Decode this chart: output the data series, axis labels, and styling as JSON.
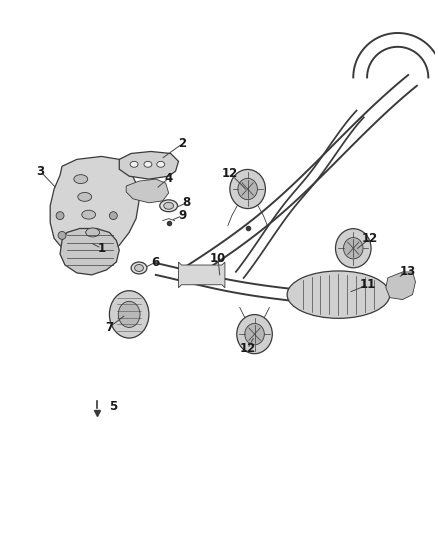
{
  "bg_color": "#ffffff",
  "line_color": "#3a3a3a",
  "label_color": "#1a1a1a",
  "lw_pipe": 1.4,
  "lw_detail": 0.9,
  "lw_thin": 0.6
}
